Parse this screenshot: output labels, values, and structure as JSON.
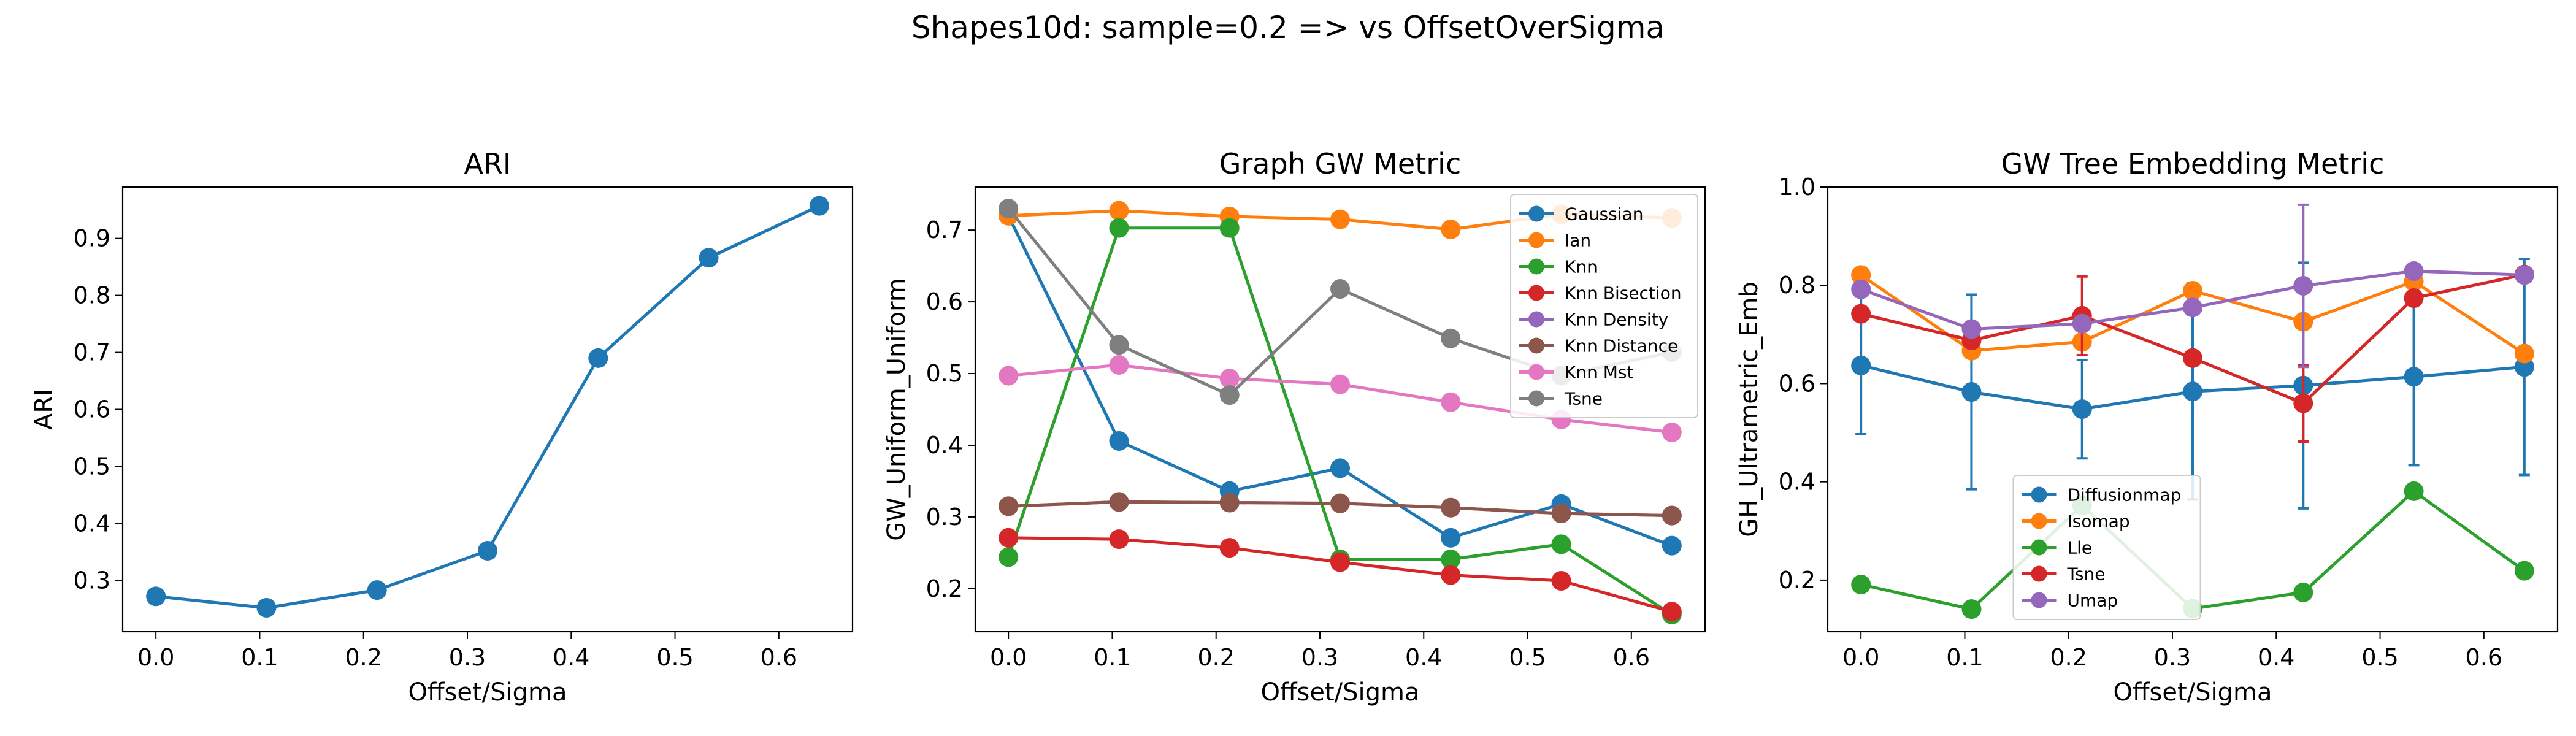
{
  "figure": {
    "suptitle": "Shapes10d: sample=0.2 => vs OffsetOverSigma"
  },
  "chart_data": [
    {
      "type": "line",
      "title": "ARI",
      "xlabel": "Offset/Sigma",
      "ylabel": "ARI",
      "x": [
        0.0,
        0.1065,
        0.213,
        0.3195,
        0.426,
        0.5325,
        0.639
      ],
      "xlim": [
        -0.032,
        0.671
      ],
      "ylim": [
        0.21,
        0.99
      ],
      "xticks": [
        0.0,
        0.1,
        0.2,
        0.3,
        0.4,
        0.5,
        0.6
      ],
      "xtick_labels": [
        "0.0",
        "0.1",
        "0.2",
        "0.3",
        "0.4",
        "0.5",
        "0.6"
      ],
      "yticks": [
        0.3,
        0.4,
        0.5,
        0.6,
        0.7,
        0.8,
        0.9
      ],
      "ytick_labels": [
        "0.3",
        "0.4",
        "0.5",
        "0.6",
        "0.7",
        "0.8",
        "0.9"
      ],
      "legend": null,
      "series": [
        {
          "name": "ARI",
          "color": "#1f77b4",
          "values": [
            0.272,
            0.252,
            0.283,
            0.352,
            0.69,
            0.866,
            0.957
          ]
        }
      ]
    },
    {
      "type": "line",
      "title": "Graph GW Metric",
      "xlabel": "Offset/Sigma",
      "ylabel": "GW_Uniform_Uniform",
      "x": [
        0.0,
        0.1065,
        0.213,
        0.3195,
        0.426,
        0.5325,
        0.639
      ],
      "xlim": [
        -0.032,
        0.671
      ],
      "ylim": [
        0.14,
        0.76
      ],
      "xticks": [
        0.0,
        0.1,
        0.2,
        0.3,
        0.4,
        0.5,
        0.6
      ],
      "xtick_labels": [
        "0.0",
        "0.1",
        "0.2",
        "0.3",
        "0.4",
        "0.5",
        "0.6"
      ],
      "yticks": [
        0.2,
        0.3,
        0.4,
        0.5,
        0.6,
        0.7
      ],
      "ytick_labels": [
        "0.2",
        "0.3",
        "0.4",
        "0.5",
        "0.6",
        "0.7"
      ],
      "legend": "top-right",
      "series": [
        {
          "name": "Gaussian",
          "color": "#1f77b4",
          "values": [
            0.72,
            0.406,
            0.336,
            0.368,
            0.271,
            0.318,
            0.26
          ]
        },
        {
          "name": "Ian",
          "color": "#ff7f0e",
          "values": [
            0.72,
            0.727,
            0.719,
            0.715,
            0.701,
            0.722,
            0.717
          ]
        },
        {
          "name": "Knn",
          "color": "#2ca02c",
          "values": [
            0.244,
            0.703,
            0.703,
            0.241,
            0.241,
            0.262,
            0.164
          ]
        },
        {
          "name": "Knn Bisection",
          "color": "#d62728",
          "values": [
            0.271,
            0.269,
            0.257,
            0.237,
            0.219,
            0.211,
            0.168
          ]
        },
        {
          "name": "Knn Density",
          "color": "#9467bd",
          "values": [
            0.315,
            0.321,
            0.32,
            0.319,
            0.313,
            0.305,
            0.302
          ]
        },
        {
          "name": "Knn Distance",
          "color": "#8c564b",
          "values": [
            0.315,
            0.321,
            0.32,
            0.319,
            0.313,
            0.305,
            0.302
          ]
        },
        {
          "name": "Knn Mst",
          "color": "#e377c2",
          "values": [
            0.497,
            0.512,
            0.493,
            0.485,
            0.46,
            0.436,
            0.418
          ]
        },
        {
          "name": "Tsne",
          "color": "#7f7f7f",
          "values": [
            0.73,
            0.54,
            0.47,
            0.618,
            0.549,
            0.497,
            0.53
          ]
        }
      ]
    },
    {
      "type": "line",
      "title": "GW Tree Embedding Metric",
      "xlabel": "Offset/Sigma",
      "ylabel": "GH_Ultrametric_Emb",
      "x": [
        0.0,
        0.1065,
        0.213,
        0.3195,
        0.426,
        0.5325,
        0.639
      ],
      "xlim": [
        -0.032,
        0.671
      ],
      "ylim": [
        0.095,
        1.0
      ],
      "xticks": [
        0.0,
        0.1,
        0.2,
        0.3,
        0.4,
        0.5,
        0.6
      ],
      "xtick_labels": [
        "0.0",
        "0.1",
        "0.2",
        "0.3",
        "0.4",
        "0.5",
        "0.6"
      ],
      "yticks": [
        0.2,
        0.4,
        0.6,
        0.8,
        1.0
      ],
      "ytick_labels": [
        "0.2",
        "0.4",
        "0.6",
        "0.8",
        "1.0"
      ],
      "legend": "lower-center",
      "series": [
        {
          "name": "Diffusionmap",
          "color": "#1f77b4",
          "values": [
            0.637,
            0.583,
            0.548,
            0.584,
            0.596,
            0.614,
            0.634
          ],
          "err": [
            0.14,
            0.198,
            0.1,
            0.22,
            0.25,
            0.18,
            0.22
          ]
        },
        {
          "name": "Isomap",
          "color": "#ff7f0e",
          "values": [
            0.821,
            0.667,
            0.685,
            0.789,
            0.726,
            0.808,
            0.661
          ],
          "err": [
            0.0,
            0.0,
            0.0,
            0.0,
            0.0,
            0.0,
            0.0
          ]
        },
        {
          "name": "Lle",
          "color": "#2ca02c",
          "values": [
            0.191,
            0.141,
            0.352,
            0.142,
            0.175,
            0.381,
            0.219
          ],
          "err": [
            0.0,
            0.0,
            0.0,
            0.0,
            0.0,
            0.0,
            0.0
          ]
        },
        {
          "name": "Tsne",
          "color": "#d62728",
          "values": [
            0.742,
            0.688,
            0.738,
            0.652,
            0.56,
            0.774,
            0.822
          ],
          "err": [
            0.0,
            0.0,
            0.08,
            0.0,
            0.078,
            0.0,
            0.0
          ]
        },
        {
          "name": "Umap",
          "color": "#9467bd",
          "values": [
            0.792,
            0.711,
            0.722,
            0.755,
            0.799,
            0.829,
            0.821
          ],
          "err": [
            0.0,
            0.0,
            0.0,
            0.0,
            0.165,
            0.0,
            0.0
          ]
        }
      ]
    }
  ]
}
